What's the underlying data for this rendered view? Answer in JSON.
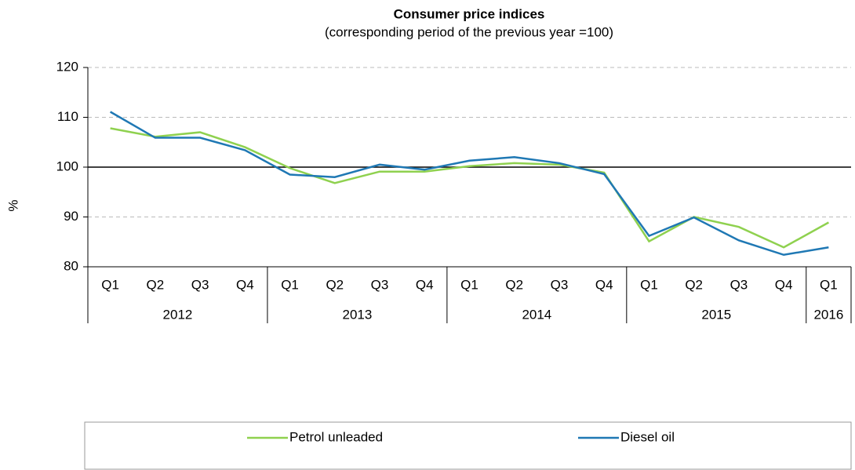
{
  "chart_data": {
    "type": "line",
    "title": "Consumer price indices",
    "subtitle": "(corresponding period of the previous year =100)",
    "y_label": "%",
    "categories": [
      "Q1",
      "Q2",
      "Q3",
      "Q4",
      "Q1",
      "Q2",
      "Q3",
      "Q4",
      "Q1",
      "Q2",
      "Q3",
      "Q4",
      "Q1",
      "Q2",
      "Q3",
      "Q4",
      "Q1"
    ],
    "years": [
      "2012",
      "2012",
      "2012",
      "2012",
      "2013",
      "2013",
      "2013",
      "2013",
      "2014",
      "2014",
      "2014",
      "2014",
      "2015",
      "2015",
      "2015",
      "2015",
      "2016"
    ],
    "series": [
      {
        "name": "Petrol unleaded",
        "color": "#8fd14f",
        "values": [
          107.8,
          106.1,
          107.0,
          104.0,
          99.8,
          96.8,
          99.1,
          99.1,
          100.2,
          100.8,
          100.5,
          98.9,
          85.1,
          90.0,
          88.0,
          83.9,
          88.9
        ]
      },
      {
        "name": "Diesel oil",
        "color": "#1f78b4",
        "values": [
          111.1,
          105.9,
          105.9,
          103.4,
          98.5,
          98.0,
          100.5,
          99.5,
          101.3,
          102.0,
          100.8,
          98.6,
          86.2,
          89.9,
          85.3,
          82.4,
          83.9
        ]
      }
    ],
    "ylim": [
      80,
      120
    ],
    "yticks": [
      80,
      90,
      100,
      110,
      120
    ],
    "grid": true,
    "reference_line": 100,
    "legend": "bottom"
  }
}
